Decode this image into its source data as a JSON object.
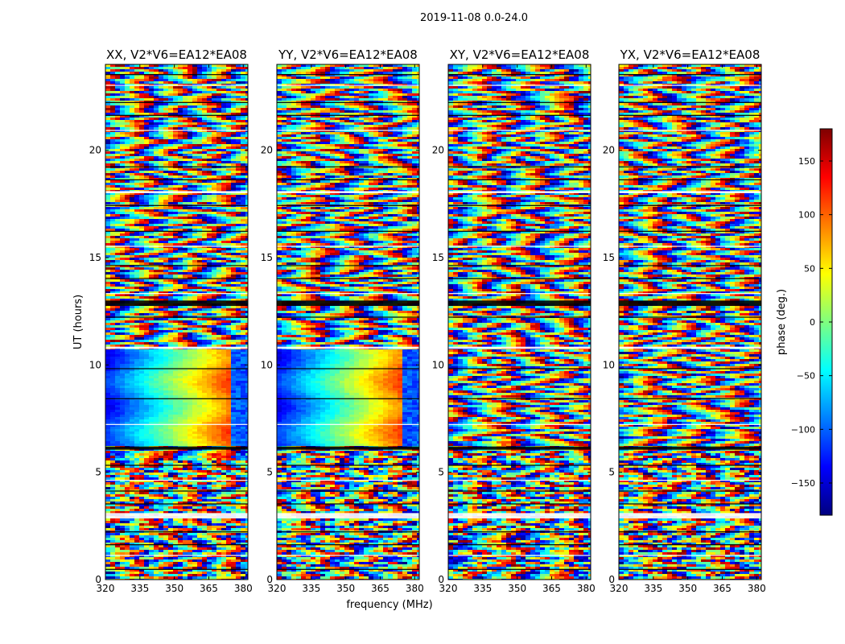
{
  "figure": {
    "suptitle": "2019-11-08 0.0-24.0"
  },
  "colorbar": {
    "label": "phase (deg.)",
    "ticks": [
      150,
      100,
      50,
      0,
      -50,
      -100,
      -150
    ],
    "tick_labels": [
      "150",
      "100",
      "50",
      "0",
      "−50",
      "−100",
      "−150"
    ],
    "range": [
      -180,
      180
    ],
    "colormap": [
      "#00007f",
      "#0000ff",
      "#007fff",
      "#00ffff",
      "#7fff7f",
      "#ffff00",
      "#ff7f00",
      "#ff0000",
      "#7f0000"
    ]
  },
  "chart_data": {
    "type": "heatmap",
    "xlabel": "frequency (MHz)",
    "ylabel": "UT (hours)",
    "xlim": [
      320,
      382
    ],
    "ylim": [
      0,
      24
    ],
    "x_ticks": [
      320,
      335,
      350,
      365,
      380
    ],
    "x_tick_labels": [
      "320",
      "335",
      "350",
      "365",
      "380"
    ],
    "y_ticks": [
      0,
      5,
      10,
      15,
      20
    ],
    "y_tick_labels": [
      "0",
      "5",
      "10",
      "15",
      "20"
    ],
    "z_label": "phase (deg.)",
    "z_range": [
      -180,
      180
    ],
    "panels": [
      {
        "title": "XX, V2*V6=EA12*EA08"
      },
      {
        "title": "YY, V2*V6=EA12*EA08"
      },
      {
        "title": "XY, V2*V6=EA12*EA08"
      },
      {
        "title": "YX, V2*V6=EA12*EA08"
      }
    ],
    "gaps_ut": [
      [
        0.45,
        0.5
      ],
      [
        1.1,
        1.15
      ],
      [
        1.6,
        1.65
      ],
      [
        2.2,
        2.25
      ],
      [
        2.85,
        3.1
      ],
      [
        3.5,
        3.55
      ],
      [
        4.1,
        4.15
      ],
      [
        4.6,
        4.65
      ],
      [
        5.3,
        5.35
      ],
      [
        6.05,
        6.2
      ],
      [
        7.2,
        7.25
      ],
      [
        8.4,
        8.45
      ],
      [
        9.8,
        9.85
      ],
      [
        10.75,
        10.85
      ],
      [
        12.2,
        12.25
      ],
      [
        12.75,
        13.0
      ],
      [
        13.3,
        13.35
      ],
      [
        14.0,
        14.05
      ],
      [
        14.6,
        14.65
      ],
      [
        15.5,
        15.55
      ],
      [
        16.2,
        16.25
      ],
      [
        17.4,
        17.45
      ],
      [
        18.0,
        18.1
      ],
      [
        18.6,
        18.65
      ],
      [
        19.2,
        19.25
      ],
      [
        20.9,
        20.95
      ],
      [
        21.6,
        21.65
      ],
      [
        22.2,
        22.25
      ],
      [
        23.0,
        23.05
      ],
      [
        23.5,
        23.55
      ]
    ]
  }
}
